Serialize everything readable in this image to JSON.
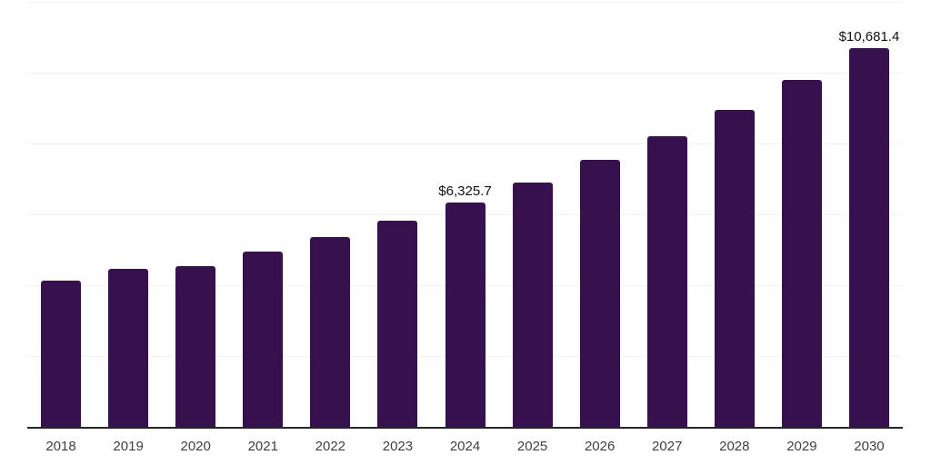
{
  "chart_data": {
    "type": "bar",
    "title": "",
    "xlabel": "",
    "ylabel": "",
    "categories": [
      "2018",
      "2019",
      "2020",
      "2021",
      "2022",
      "2023",
      "2024",
      "2025",
      "2026",
      "2027",
      "2028",
      "2029",
      "2030"
    ],
    "values": [
      4120,
      4470,
      4540,
      4950,
      5370,
      5830,
      6325.7,
      6900,
      7530,
      8210,
      8960,
      9790,
      10681.4
    ],
    "value_labels": [
      "",
      "",
      "",
      "",
      "",
      "",
      "$6,325.7",
      "",
      "",
      "",
      "",
      "",
      "$10,681.4"
    ],
    "ylim": [
      0,
      12000
    ],
    "gridline_step": 2000,
    "grid": "horizontal-only",
    "y_tick_labels_visible": false,
    "legend_position": "none",
    "colors": {
      "bar_fill": "#36114d",
      "gridline": "#f2f2f4",
      "axis_line": "#262626",
      "x_tick_label": "#3f3f3f",
      "data_label": "#111111",
      "background": "#ffffff"
    }
  }
}
